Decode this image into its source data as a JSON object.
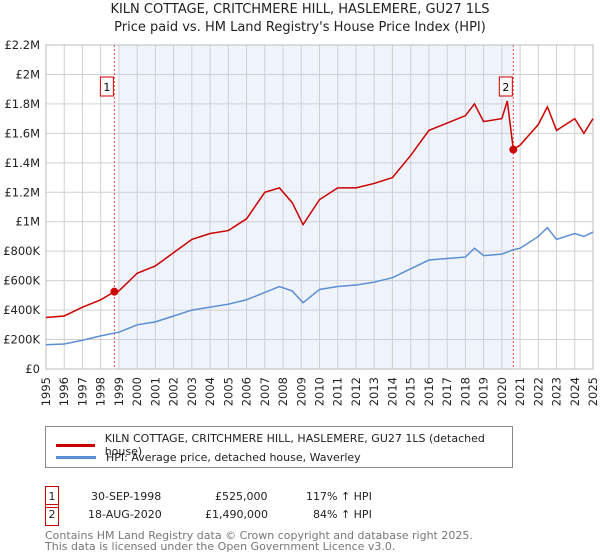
{
  "chart_data": {
    "type": "line",
    "title": "KILN COTTAGE, CRITCHMERE HILL, HASLEMERE, GU27 1LS",
    "subtitle": "Price paid vs. HM Land Registry's House Price Index (HPI)",
    "ylim": [
      0,
      2200000
    ],
    "xlim": [
      1995,
      2025
    ],
    "yticks": [
      {
        "v": 0,
        "label": "£0"
      },
      {
        "v": 200000,
        "label": "£200K"
      },
      {
        "v": 400000,
        "label": "£400K"
      },
      {
        "v": 600000,
        "label": "£600K"
      },
      {
        "v": 800000,
        "label": "£800K"
      },
      {
        "v": 1000000,
        "label": "£1M"
      },
      {
        "v": 1200000,
        "label": "£1.2M"
      },
      {
        "v": 1400000,
        "label": "£1.4M"
      },
      {
        "v": 1600000,
        "label": "£1.6M"
      },
      {
        "v": 1800000,
        "label": "£1.8M"
      },
      {
        "v": 2000000,
        "label": "£2M"
      },
      {
        "v": 2200000,
        "label": "£2.2M"
      }
    ],
    "xticks": [
      "1995",
      "1996",
      "1997",
      "1998",
      "1999",
      "2000",
      "2001",
      "2002",
      "2003",
      "2004",
      "2005",
      "2006",
      "2007",
      "2008",
      "2009",
      "2010",
      "2011",
      "2012",
      "2013",
      "2014",
      "2015",
      "2016",
      "2017",
      "2018",
      "2019",
      "2020",
      "2021",
      "2022",
      "2023",
      "2024",
      "2025"
    ],
    "series": [
      {
        "name": "KILN COTTAGE, CRITCHMERE HILL, HASLEMERE, GU27 1LS (detached house)",
        "color": "#cc0000",
        "x": [
          1995,
          1996,
          1997,
          1998,
          1998.75,
          1999,
          2000,
          2001,
          2002,
          2003,
          2004,
          2005,
          2006,
          2007,
          2007.8,
          2008.5,
          2009.1,
          2010,
          2011,
          2012,
          2013,
          2014,
          2015,
          2016,
          2017,
          2018,
          2018.5,
          2019,
          2020,
          2020.3,
          2020.63,
          2021,
          2022,
          2022.5,
          2023,
          2024,
          2024.5,
          2025
        ],
        "values": [
          350000,
          360000,
          420000,
          470000,
          525000,
          530000,
          650000,
          700000,
          790000,
          880000,
          920000,
          940000,
          1020000,
          1200000,
          1230000,
          1130000,
          980000,
          1150000,
          1230000,
          1230000,
          1260000,
          1300000,
          1450000,
          1620000,
          1670000,
          1720000,
          1800000,
          1680000,
          1700000,
          1820000,
          1490000,
          1520000,
          1660000,
          1780000,
          1620000,
          1700000,
          1600000,
          1700000
        ]
      },
      {
        "name": "HPI: Average price, detached house, Waverley",
        "color": "#5b8fd4",
        "x": [
          1995,
          1996,
          1997,
          1998,
          1999,
          2000,
          2001,
          2002,
          2003,
          2004,
          2005,
          2006,
          2007,
          2007.8,
          2008.5,
          2009.1,
          2010,
          2011,
          2012,
          2013,
          2014,
          2015,
          2016,
          2017,
          2018,
          2018.5,
          2019,
          2020,
          2020.63,
          2021,
          2022,
          2022.5,
          2023,
          2024,
          2024.5,
          2025
        ],
        "values": [
          165000,
          170000,
          195000,
          225000,
          250000,
          300000,
          320000,
          360000,
          400000,
          420000,
          440000,
          470000,
          520000,
          560000,
          530000,
          450000,
          540000,
          560000,
          570000,
          590000,
          620000,
          680000,
          740000,
          750000,
          760000,
          820000,
          770000,
          780000,
          810000,
          820000,
          900000,
          960000,
          880000,
          920000,
          900000,
          930000
        ]
      }
    ],
    "markers": [
      {
        "label": "1",
        "x": 1998.75,
        "value": 525000
      },
      {
        "label": "2",
        "x": 2020.63,
        "value": 1490000
      }
    ],
    "shaded_range": [
      1999,
      2020.63
    ]
  },
  "legend": {
    "property": "KILN COTTAGE, CRITCHMERE HILL, HASLEMERE, GU27 1LS (detached house)",
    "hpi": "HPI: Average price, detached house, Waverley"
  },
  "transactions": [
    {
      "num": "1",
      "date": "30-SEP-1998",
      "price": "£525,000",
      "hpi": "117% ↑ HPI"
    },
    {
      "num": "2",
      "date": "18-AUG-2020",
      "price": "£1,490,000",
      "hpi": "84% ↑ HPI"
    }
  ],
  "footer": {
    "line1": "Contains HM Land Registry data © Crown copyright and database right 2025.",
    "line2": "This data is licensed under the Open Government Licence v3.0."
  }
}
